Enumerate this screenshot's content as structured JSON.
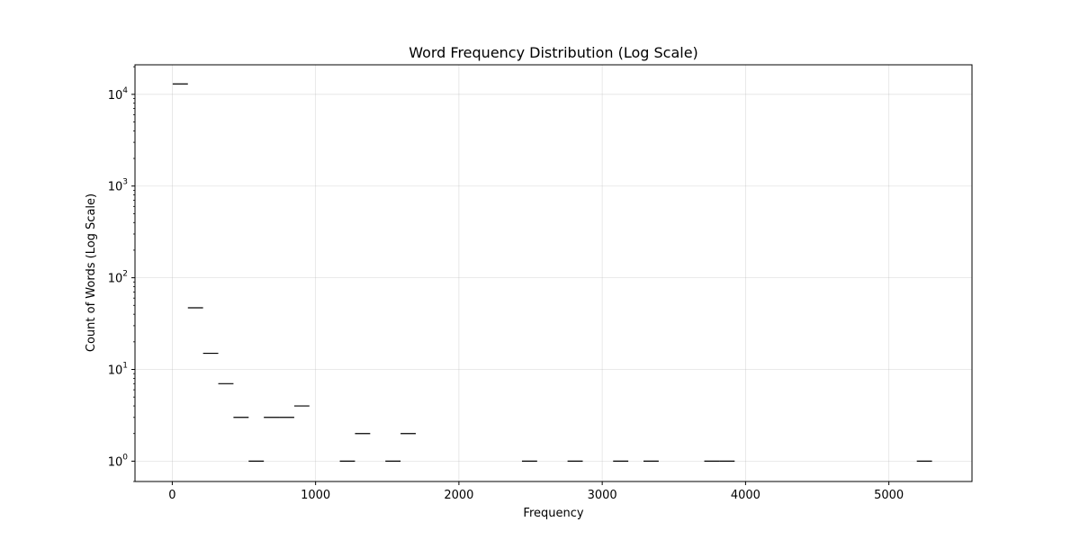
{
  "chart_data": {
    "type": "bar",
    "title": "Word Frequency Distribution (Log Scale)",
    "xlabel": "Frequency",
    "ylabel": "Count of Words (Log Scale)",
    "yscale": "log",
    "xlim": [
      -260,
      5580
    ],
    "ylim": [
      0.6,
      21000
    ],
    "x_ticks": [
      {
        "value": 0,
        "label": "0"
      },
      {
        "value": 1000,
        "label": "1000"
      },
      {
        "value": 2000,
        "label": "2000"
      },
      {
        "value": 3000,
        "label": "3000"
      },
      {
        "value": 4000,
        "label": "4000"
      },
      {
        "value": 5000,
        "label": "5000"
      }
    ],
    "y_ticks": [
      {
        "value": 1,
        "base": "10",
        "exp": "0"
      },
      {
        "value": 10,
        "base": "10",
        "exp": "1"
      },
      {
        "value": 100,
        "base": "10",
        "exp": "2"
      },
      {
        "value": 1000,
        "base": "10",
        "exp": "3"
      },
      {
        "value": 10000,
        "base": "10",
        "exp": "4"
      }
    ],
    "grid": true,
    "bins": [
      {
        "x0": 3,
        "x1": 109,
        "count": 13000
      },
      {
        "x0": 109,
        "x1": 215,
        "count": 47
      },
      {
        "x0": 215,
        "x1": 321,
        "count": 15
      },
      {
        "x0": 321,
        "x1": 427,
        "count": 7
      },
      {
        "x0": 427,
        "x1": 533,
        "count": 3
      },
      {
        "x0": 533,
        "x1": 639,
        "count": 1
      },
      {
        "x0": 639,
        "x1": 745,
        "count": 3
      },
      {
        "x0": 745,
        "x1": 851,
        "count": 3
      },
      {
        "x0": 851,
        "x1": 957,
        "count": 4
      },
      {
        "x0": 1169,
        "x1": 1275,
        "count": 1
      },
      {
        "x0": 1275,
        "x1": 1381,
        "count": 2
      },
      {
        "x0": 1487,
        "x1": 1593,
        "count": 1
      },
      {
        "x0": 1593,
        "x1": 1699,
        "count": 2
      },
      {
        "x0": 2440,
        "x1": 2546,
        "count": 1
      },
      {
        "x0": 2758,
        "x1": 2864,
        "count": 1
      },
      {
        "x0": 3076,
        "x1": 3182,
        "count": 1
      },
      {
        "x0": 3288,
        "x1": 3394,
        "count": 1
      },
      {
        "x0": 3712,
        "x1": 3818,
        "count": 1
      },
      {
        "x0": 3818,
        "x1": 3924,
        "count": 1
      },
      {
        "x0": 5195,
        "x1": 5301,
        "count": 1
      }
    ]
  }
}
